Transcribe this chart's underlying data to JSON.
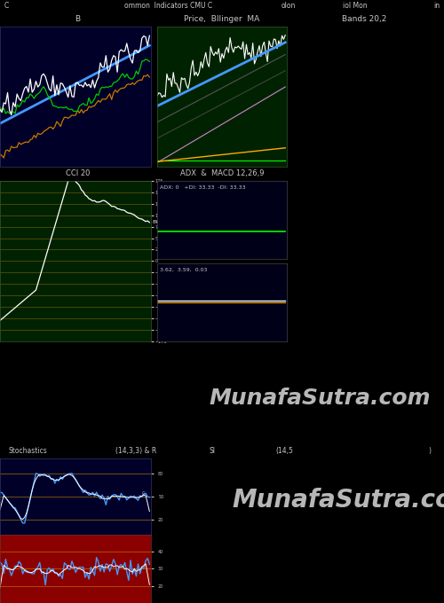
{
  "title_text": "ommon  Indicators CMU C",
  "title_left": "C",
  "title_date": "olon",
  "title_right": "iol Mon",
  "title_far": "in",
  "panel1_title": "B",
  "panel2_title": "Price,  Bllinger  MA",
  "panel3_title": "Bands 20,2",
  "panel4_title": "CCI 20",
  "panel5_title": "ADX  &  MACD 12,26,9",
  "panel5_label": "ADX: 0   +DI: 33.33  -DI: 33.33",
  "panel6_label": "3.62,  3.59,  0.03",
  "panel7_title": "Stochastics",
  "panel7_subtitle": "(14,3,3) & R",
  "panel8_title": "SI",
  "panel8_subtitle": "(14,5",
  "panel8_end": ")",
  "watermark": "MunafaSutra.com",
  "bg_dark_blue": "#000028",
  "bg_dark_green": "#002200",
  "bg_navy": "#000018",
  "bg_black": "#000000",
  "bg_red": "#8B0000",
  "grid_color": "#8B6914",
  "text_color": "#c8c8c8",
  "white": "#ffffff",
  "blue": "#4499ff",
  "green": "#00cc00",
  "orange": "#cc7700",
  "pink": "#cc88cc",
  "dark_gray": "#555555",
  "bright_green": "#00ff00",
  "bright_orange": "#ffaa00",
  "stoch_orange": "#cc8800"
}
